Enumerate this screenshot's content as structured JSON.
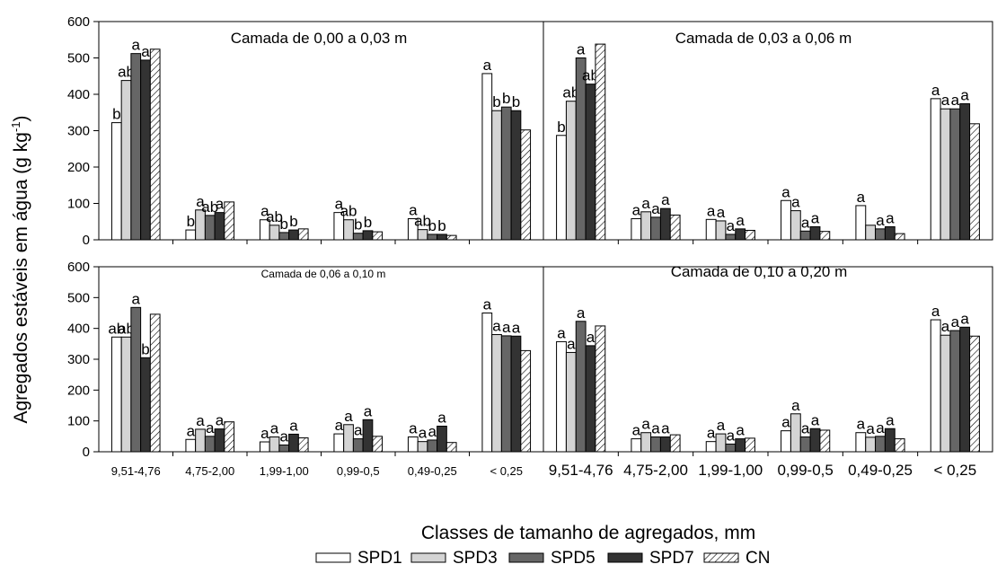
{
  "figure": {
    "ylabel": "Agregados estáveis em água (g kg",
    "ylabel_sup": "-1",
    "ylabel_close": ")",
    "xlabel": "Classes de tamanho de agregados, mm"
  },
  "legend": {
    "entries": [
      {
        "name": "SPD1",
        "fill": "#ffffff"
      },
      {
        "name": "SPD3",
        "fill": "#d4d4d4"
      },
      {
        "name": "SPD5",
        "fill": "#666666"
      },
      {
        "name": "SPD7",
        "fill": "#333333"
      },
      {
        "name": "CN",
        "fill": "hatch"
      }
    ]
  },
  "chart_data": [
    {
      "type": "bar",
      "title": "Camada de 0,00 a 0,03  m",
      "categories": [
        "9,51-4,76",
        "4,75-2,00",
        "1,99-1,00",
        "0,99-0,5",
        "0,49-0,25",
        "< 0,25"
      ],
      "ylim": [
        0,
        600
      ],
      "yticks": [
        "0",
        "100",
        "200",
        "300",
        "400",
        "500",
        "600"
      ],
      "series": [
        {
          "name": "SPD1",
          "values": [
            322,
            27,
            55,
            75,
            58,
            457
          ]
        },
        {
          "name": "SPD3",
          "values": [
            438,
            82,
            40,
            55,
            28,
            355
          ]
        },
        {
          "name": "SPD5",
          "values": [
            512,
            67,
            20,
            18,
            15,
            365
          ]
        },
        {
          "name": "SPD7",
          "values": [
            494,
            75,
            27,
            25,
            15,
            355
          ]
        },
        {
          "name": "CN",
          "values": [
            524,
            104,
            30,
            22,
            12,
            302
          ]
        }
      ],
      "letters": [
        [
          "b",
          "ab",
          "a",
          "a",
          ""
        ],
        [
          "b",
          "a",
          "ab",
          "a",
          ""
        ],
        [
          "a",
          "ab",
          "b",
          "b",
          ""
        ],
        [
          "a",
          "ab",
          "b",
          "b",
          ""
        ],
        [
          "a",
          "ab",
          "b",
          "b",
          ""
        ],
        [
          "a",
          "b",
          "b",
          "b",
          ""
        ]
      ]
    },
    {
      "type": "bar",
      "title": "Camada de 0,03 a 0,06 m",
      "categories": [
        "9,51-4,76",
        "4,75-2,00",
        "1,99-1,00",
        "0,99-0,5",
        "0,49-0,25",
        "< 0,25"
      ],
      "ylim": [
        0,
        600
      ],
      "series": [
        {
          "name": "SPD1",
          "values": [
            287,
            58,
            56,
            108,
            94,
            388
          ]
        },
        {
          "name": "SPD3",
          "values": [
            381,
            77,
            52,
            80,
            40,
            360
          ]
        },
        {
          "name": "SPD5",
          "values": [
            500,
            62,
            15,
            24,
            30,
            360
          ]
        },
        {
          "name": "SPD7",
          "values": [
            428,
            86,
            30,
            36,
            36,
            374
          ]
        },
        {
          "name": "CN",
          "values": [
            538,
            68,
            26,
            23,
            17,
            319
          ]
        }
      ],
      "letters": [
        [
          "b",
          "ab",
          "a",
          "ab",
          ""
        ],
        [
          "a",
          "a",
          "a",
          "a",
          ""
        ],
        [
          "a",
          "a",
          "a",
          "a",
          ""
        ],
        [
          "a",
          "a",
          "a",
          "a",
          ""
        ],
        [
          "a",
          "",
          "a",
          "a",
          ""
        ],
        [
          "a",
          "a",
          "a",
          "a",
          ""
        ]
      ]
    },
    {
      "type": "bar",
      "title": "Camada de 0,06 a 0,10 m",
      "categories": [
        "9,51-4,76",
        "4,75-2,00",
        "1,99-1,00",
        "0,99-0,5",
        "0,49-0,25",
        "< 0,25"
      ],
      "ylim": [
        0,
        600
      ],
      "yticks": [
        "0",
        "100",
        "200",
        "300",
        "400",
        "500",
        "600"
      ],
      "series": [
        {
          "name": "SPD1",
          "values": [
            372,
            40,
            32,
            58,
            48,
            450
          ]
        },
        {
          "name": "SPD3",
          "values": [
            372,
            73,
            48,
            88,
            33,
            380
          ]
        },
        {
          "name": "SPD5",
          "values": [
            468,
            50,
            22,
            42,
            38,
            376
          ]
        },
        {
          "name": "SPD7",
          "values": [
            305,
            74,
            57,
            104,
            83,
            375
          ]
        },
        {
          "name": "CN",
          "values": [
            446,
            97,
            45,
            50,
            30,
            328
          ]
        }
      ],
      "letters": [
        [
          "ab",
          "ab",
          "a",
          "b",
          ""
        ],
        [
          "a",
          "a",
          "a",
          "a",
          ""
        ],
        [
          "a",
          "a",
          "a",
          "a",
          ""
        ],
        [
          "a",
          "a",
          "a",
          "a",
          ""
        ],
        [
          "a",
          "a",
          "a",
          "a",
          ""
        ],
        [
          "a",
          "a",
          "a",
          "a",
          ""
        ]
      ]
    },
    {
      "type": "bar",
      "title": "Camada de 0,10 a 0,20 m",
      "categories": [
        "9,51-4,76",
        "4,75-2,00",
        "1,99-1,00",
        "0,99-0,5",
        "0,49-0,25",
        "< 0,25"
      ],
      "ylim": [
        0,
        600
      ],
      "series": [
        {
          "name": "SPD1",
          "values": [
            357,
            42,
            33,
            68,
            62,
            428
          ]
        },
        {
          "name": "SPD3",
          "values": [
            322,
            62,
            58,
            123,
            47,
            378
          ]
        },
        {
          "name": "SPD5",
          "values": [
            423,
            48,
            25,
            48,
            50,
            393
          ]
        },
        {
          "name": "SPD7",
          "values": [
            344,
            48,
            42,
            75,
            75,
            404
          ]
        },
        {
          "name": "CN",
          "values": [
            408,
            55,
            44,
            70,
            42,
            375
          ]
        }
      ],
      "letters": [
        [
          "a",
          "a",
          "a",
          "a",
          ""
        ],
        [
          "a",
          "a",
          "a",
          "a",
          ""
        ],
        [
          "a",
          "a",
          "a",
          "a",
          ""
        ],
        [
          "a",
          "a",
          "a",
          "a",
          ""
        ],
        [
          "a",
          "a",
          "a",
          "a",
          ""
        ],
        [
          "a",
          "a",
          "a",
          "a",
          ""
        ]
      ]
    }
  ]
}
